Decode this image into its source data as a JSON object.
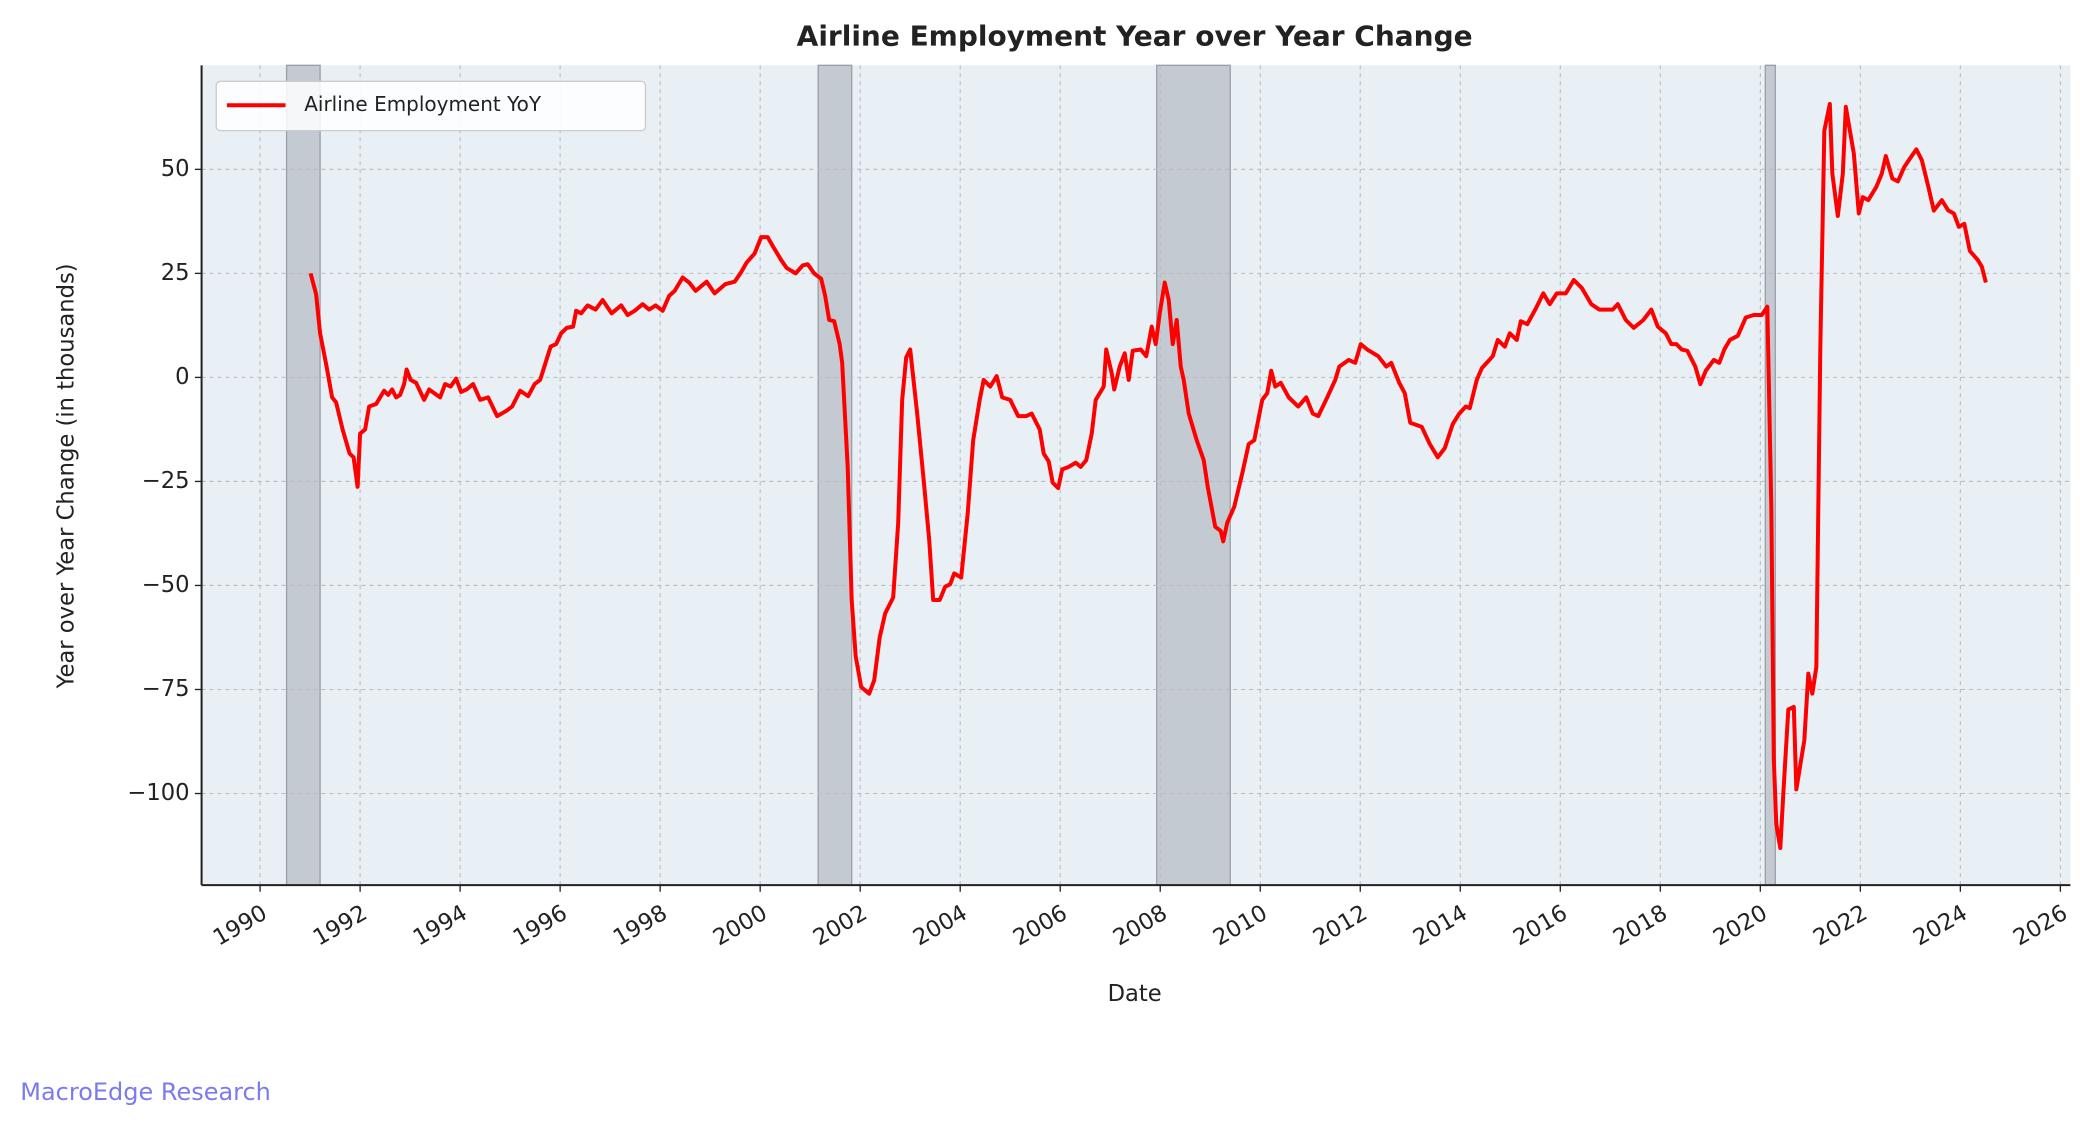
{
  "chart_data": {
    "type": "line",
    "title": "Airline Employment Year over Year Change",
    "xlabel": "Date",
    "ylabel": "Year over Year Change (in thousands)",
    "watermark": "MacroEdge Research",
    "legend": "upper left",
    "grid": true,
    "xlim": [
      1988.83,
      2026.2
    ],
    "ylim": [
      -122,
      75
    ],
    "xticks": [
      1990,
      1992,
      1994,
      1996,
      1998,
      2000,
      2002,
      2004,
      2006,
      2008,
      2010,
      2012,
      2014,
      2016,
      2018,
      2020,
      2022,
      2024,
      2026
    ],
    "yticks": [
      {
        "value": -100,
        "label": "−100"
      },
      {
        "value": -75,
        "label": "−75"
      },
      {
        "value": -50,
        "label": "−50"
      },
      {
        "value": -25,
        "label": "−25"
      },
      0,
      25,
      50
    ],
    "shaded_regions": [
      {
        "start": 1990.53,
        "end": 1991.2
      },
      {
        "start": 2001.16,
        "end": 2001.83
      },
      {
        "start": 2007.93,
        "end": 2009.4
      },
      {
        "start": 2020.1,
        "end": 2020.3
      }
    ],
    "x": [
      1991.01,
      1991.12,
      1991.2,
      1991.33,
      1991.44,
      1991.52,
      1991.65,
      1991.79,
      1991.87,
      1991.95,
      1992.0,
      1992.1,
      1992.18,
      1992.32,
      1992.4,
      1992.48,
      1992.56,
      1992.64,
      1992.72,
      1992.8,
      1992.88,
      1992.93,
      1993.01,
      1993.12,
      1993.28,
      1993.38,
      1993.6,
      1993.7,
      1993.81,
      1993.92,
      1994.02,
      1994.13,
      1994.26,
      1994.4,
      1994.56,
      1994.74,
      1994.93,
      1995.04,
      1995.2,
      1995.36,
      1995.49,
      1995.6,
      1995.7,
      1995.81,
      1995.92,
      1996.02,
      1996.13,
      1996.26,
      1996.32,
      1996.42,
      1996.55,
      1996.71,
      1996.85,
      1997.03,
      1997.22,
      1997.35,
      1997.49,
      1997.65,
      1997.78,
      1997.91,
      1998.05,
      1998.18,
      1998.29,
      1998.45,
      1998.58,
      1998.71,
      1998.93,
      1999.09,
      1999.3,
      1999.49,
      1999.62,
      1999.73,
      1999.89,
      2000.02,
      2000.15,
      2000.26,
      2000.42,
      2000.53,
      2000.71,
      2000.85,
      2000.95,
      2001.08,
      2001.22,
      2001.3,
      2001.38,
      2001.48,
      2001.59,
      2001.64,
      2001.75,
      2001.83,
      2001.91,
      2002.02,
      2002.18,
      2002.28,
      2002.39,
      2002.5,
      2002.66,
      2002.76,
      2002.84,
      2002.92,
      2003.0,
      2003.14,
      2003.27,
      2003.38,
      2003.46,
      2003.59,
      2003.7,
      2003.8,
      2003.88,
      2004.02,
      2004.15,
      2004.26,
      2004.39,
      2004.47,
      2004.6,
      2004.73,
      2004.84,
      2005.0,
      2005.16,
      2005.32,
      2005.43,
      2005.59,
      2005.67,
      2005.77,
      2005.85,
      2005.96,
      2006.04,
      2006.17,
      2006.31,
      2006.41,
      2006.52,
      2006.63,
      2006.71,
      2006.87,
      2006.92,
      2007.03,
      2007.08,
      2007.19,
      2007.29,
      2007.37,
      2007.45,
      2007.61,
      2007.72,
      2007.83,
      2007.91,
      2007.99,
      2008.09,
      2008.17,
      2008.25,
      2008.33,
      2008.41,
      2008.47,
      2008.57,
      2008.73,
      2008.87,
      2008.95,
      2009.1,
      2009.21,
      2009.26,
      2009.34,
      2009.48,
      2009.64,
      2009.77,
      2009.88,
      2010.04,
      2010.14,
      2010.22,
      2010.3,
      2010.41,
      2010.57,
      2010.76,
      2010.92,
      2011.05,
      2011.16,
      2011.34,
      2011.5,
      2011.58,
      2011.77,
      2011.9,
      2012.01,
      2012.14,
      2012.36,
      2012.52,
      2012.62,
      2012.78,
      2012.89,
      2013.0,
      2013.23,
      2013.39,
      2013.55,
      2013.69,
      2013.85,
      2013.98,
      2014.11,
      2014.19,
      2014.33,
      2014.43,
      2014.65,
      2014.75,
      2014.89,
      2014.99,
      2015.13,
      2015.21,
      2015.34,
      2015.5,
      2015.66,
      2015.79,
      2015.93,
      2016.11,
      2016.27,
      2016.43,
      2016.62,
      2016.78,
      2017.05,
      2017.15,
      2017.31,
      2017.47,
      2017.66,
      2017.82,
      2017.95,
      2018.11,
      2018.22,
      2018.32,
      2018.43,
      2018.54,
      2018.7,
      2018.8,
      2018.91,
      2019.07,
      2019.18,
      2019.28,
      2019.39,
      2019.55,
      2019.71,
      2019.87,
      2020.03,
      2020.14,
      2020.22,
      2020.27,
      2020.32,
      2020.4,
      2020.46,
      2020.56,
      2020.67,
      2020.72,
      2020.88,
      2020.96,
      2021.04,
      2021.12,
      2021.2,
      2021.28,
      2021.39,
      2021.44,
      2021.55,
      2021.65,
      2021.71,
      2021.87,
      2021.97,
      2022.05,
      2022.16,
      2022.32,
      2022.43,
      2022.51,
      2022.64,
      2022.75,
      2022.88,
      2023.01,
      2023.12,
      2023.23,
      2023.36,
      2023.47,
      2023.63,
      2023.76,
      2023.87,
      2023.97,
      2024.08,
      2024.19,
      2024.35,
      2024.43,
      2024.51
    ],
    "series": [
      {
        "name": "Airline Employment YoY",
        "color": "#ff0000",
        "values": [
          25,
          20,
          10.6,
          2.6,
          -4.8,
          -6,
          -12.5,
          -18.3,
          -19.2,
          -26.3,
          -13.5,
          -12.5,
          -7,
          -6.4,
          -4.8,
          -3.2,
          -4.2,
          -2.9,
          -4.8,
          -4.2,
          -1.6,
          1.9,
          -0.6,
          -1.3,
          -5.4,
          -2.9,
          -4.8,
          -1.6,
          -2.2,
          -0.3,
          -3.5,
          -2.9,
          -1.6,
          -5.4,
          -4.8,
          -9.3,
          -8,
          -7,
          -3.2,
          -4.5,
          -1.6,
          -0.6,
          3.2,
          7.4,
          8,
          10.6,
          11.9,
          12.2,
          16,
          15.4,
          17.3,
          16.3,
          18.6,
          15.4,
          17.3,
          15,
          16,
          17.6,
          16.3,
          17.3,
          16,
          19.6,
          20.8,
          24,
          22.8,
          20.8,
          23,
          20.2,
          22.4,
          23,
          25.3,
          27.6,
          29.8,
          33.7,
          33.7,
          31.4,
          28.2,
          26.3,
          25,
          26.9,
          27.2,
          25,
          23.7,
          19.6,
          13.8,
          13.5,
          8,
          3.5,
          -21.5,
          -53.5,
          -67,
          -74.4,
          -76,
          -72.8,
          -62.5,
          -56.7,
          -52.9,
          -35,
          -5.4,
          4.8,
          6.7,
          -8.7,
          -24.7,
          -39,
          -53.5,
          -53.5,
          -50.3,
          -49.7,
          -47.1,
          -48.1,
          -32.7,
          -15.1,
          -5.4,
          -0.6,
          -2.2,
          0.3,
          -4.8,
          -5.4,
          -9.3,
          -9.3,
          -8.7,
          -12.5,
          -18.3,
          -20.2,
          -25.3,
          -26.6,
          -22.1,
          -21.5,
          -20.5,
          -21.5,
          -19.9,
          -13.5,
          -5.4,
          -2.2,
          6.7,
          1,
          -2.9,
          2.6,
          5.8,
          -0.6,
          6.4,
          6.7,
          5.1,
          12.2,
          8,
          15.4,
          22.8,
          18.6,
          8,
          13.8,
          2.6,
          -0.6,
          -8.7,
          -15.1,
          -19.9,
          -26.3,
          -35.9,
          -36.9,
          -39.4,
          -34.9,
          -31.1,
          -23.1,
          -16,
          -15.1,
          -5.4,
          -3.8,
          1.6,
          -2.2,
          -1.3,
          -4.8,
          -7,
          -4.8,
          -8.7,
          -9.3,
          -4.8,
          -0.6,
          2.6,
          4.2,
          3.5,
          8,
          6.7,
          5.1,
          2.6,
          3.5,
          -1.3,
          -3.8,
          -10.9,
          -11.9,
          -16,
          -19.2,
          -17,
          -11.2,
          -8.7,
          -7,
          -7.4,
          -0.6,
          2.2,
          5.1,
          9,
          7.4,
          10.6,
          9,
          13.5,
          12.8,
          16.3,
          20.2,
          17.6,
          20.2,
          20.2,
          23.4,
          21.5,
          17.6,
          16.3,
          16.3,
          17.6,
          13.8,
          11.9,
          13.8,
          16.3,
          12.2,
          10.6,
          8,
          8,
          6.7,
          6.4,
          2.6,
          -1.6,
          1.6,
          4.2,
          3.5,
          6.7,
          9,
          10,
          14.4,
          15,
          15,
          17,
          -31.1,
          -92,
          -107.4,
          -113.1,
          -100,
          -79.8,
          -79.2,
          -99,
          -87.2,
          -71.2,
          -76,
          -69.6,
          7.4,
          59.3,
          65.7,
          49,
          38.8,
          49,
          65,
          53.8,
          39.4,
          43.3,
          42.6,
          45.8,
          49,
          53.2,
          47.8,
          47.1,
          50.6,
          52.9,
          54.8,
          52.2,
          45.8,
          40.1,
          42.6,
          40.1,
          39.4,
          36.2,
          36.9,
          30.4,
          28.2,
          26.6,
          22.8
        ]
      }
    ]
  }
}
